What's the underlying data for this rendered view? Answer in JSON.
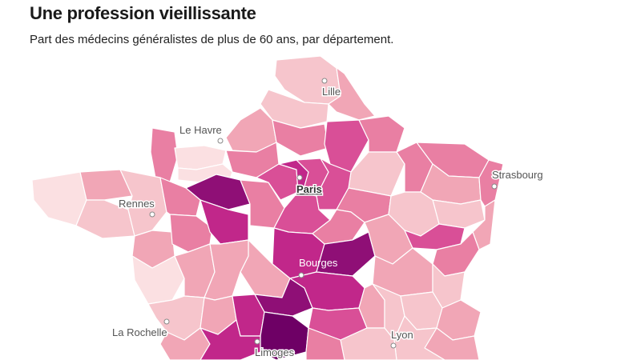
{
  "header": {
    "title": "Une profession vieillissante",
    "subtitle": "Part des médecins généralistes de plus de 60 ans, par département."
  },
  "palette": {
    "c1": "#fbe0e2",
    "c2": "#f6c5cc",
    "c3": "#f1a6b6",
    "c4": "#e97fa3",
    "c5": "#d94f97",
    "c6": "#c1278a",
    "c7": "#8f0f76",
    "c8": "#6e0065"
  },
  "cities": [
    {
      "id": "lille",
      "label": "Lille"
    },
    {
      "id": "le-havre",
      "label": "Le Havre"
    },
    {
      "id": "paris",
      "label": "Paris"
    },
    {
      "id": "strasbourg",
      "label": "Strasbourg"
    },
    {
      "id": "rennes",
      "label": "Rennes"
    },
    {
      "id": "bourges",
      "label": "Bourges"
    },
    {
      "id": "la-rochelle",
      "label": "La Rochelle"
    },
    {
      "id": "lyon",
      "label": "Lyon"
    },
    {
      "id": "limoges",
      "label": "Limoges"
    }
  ]
}
